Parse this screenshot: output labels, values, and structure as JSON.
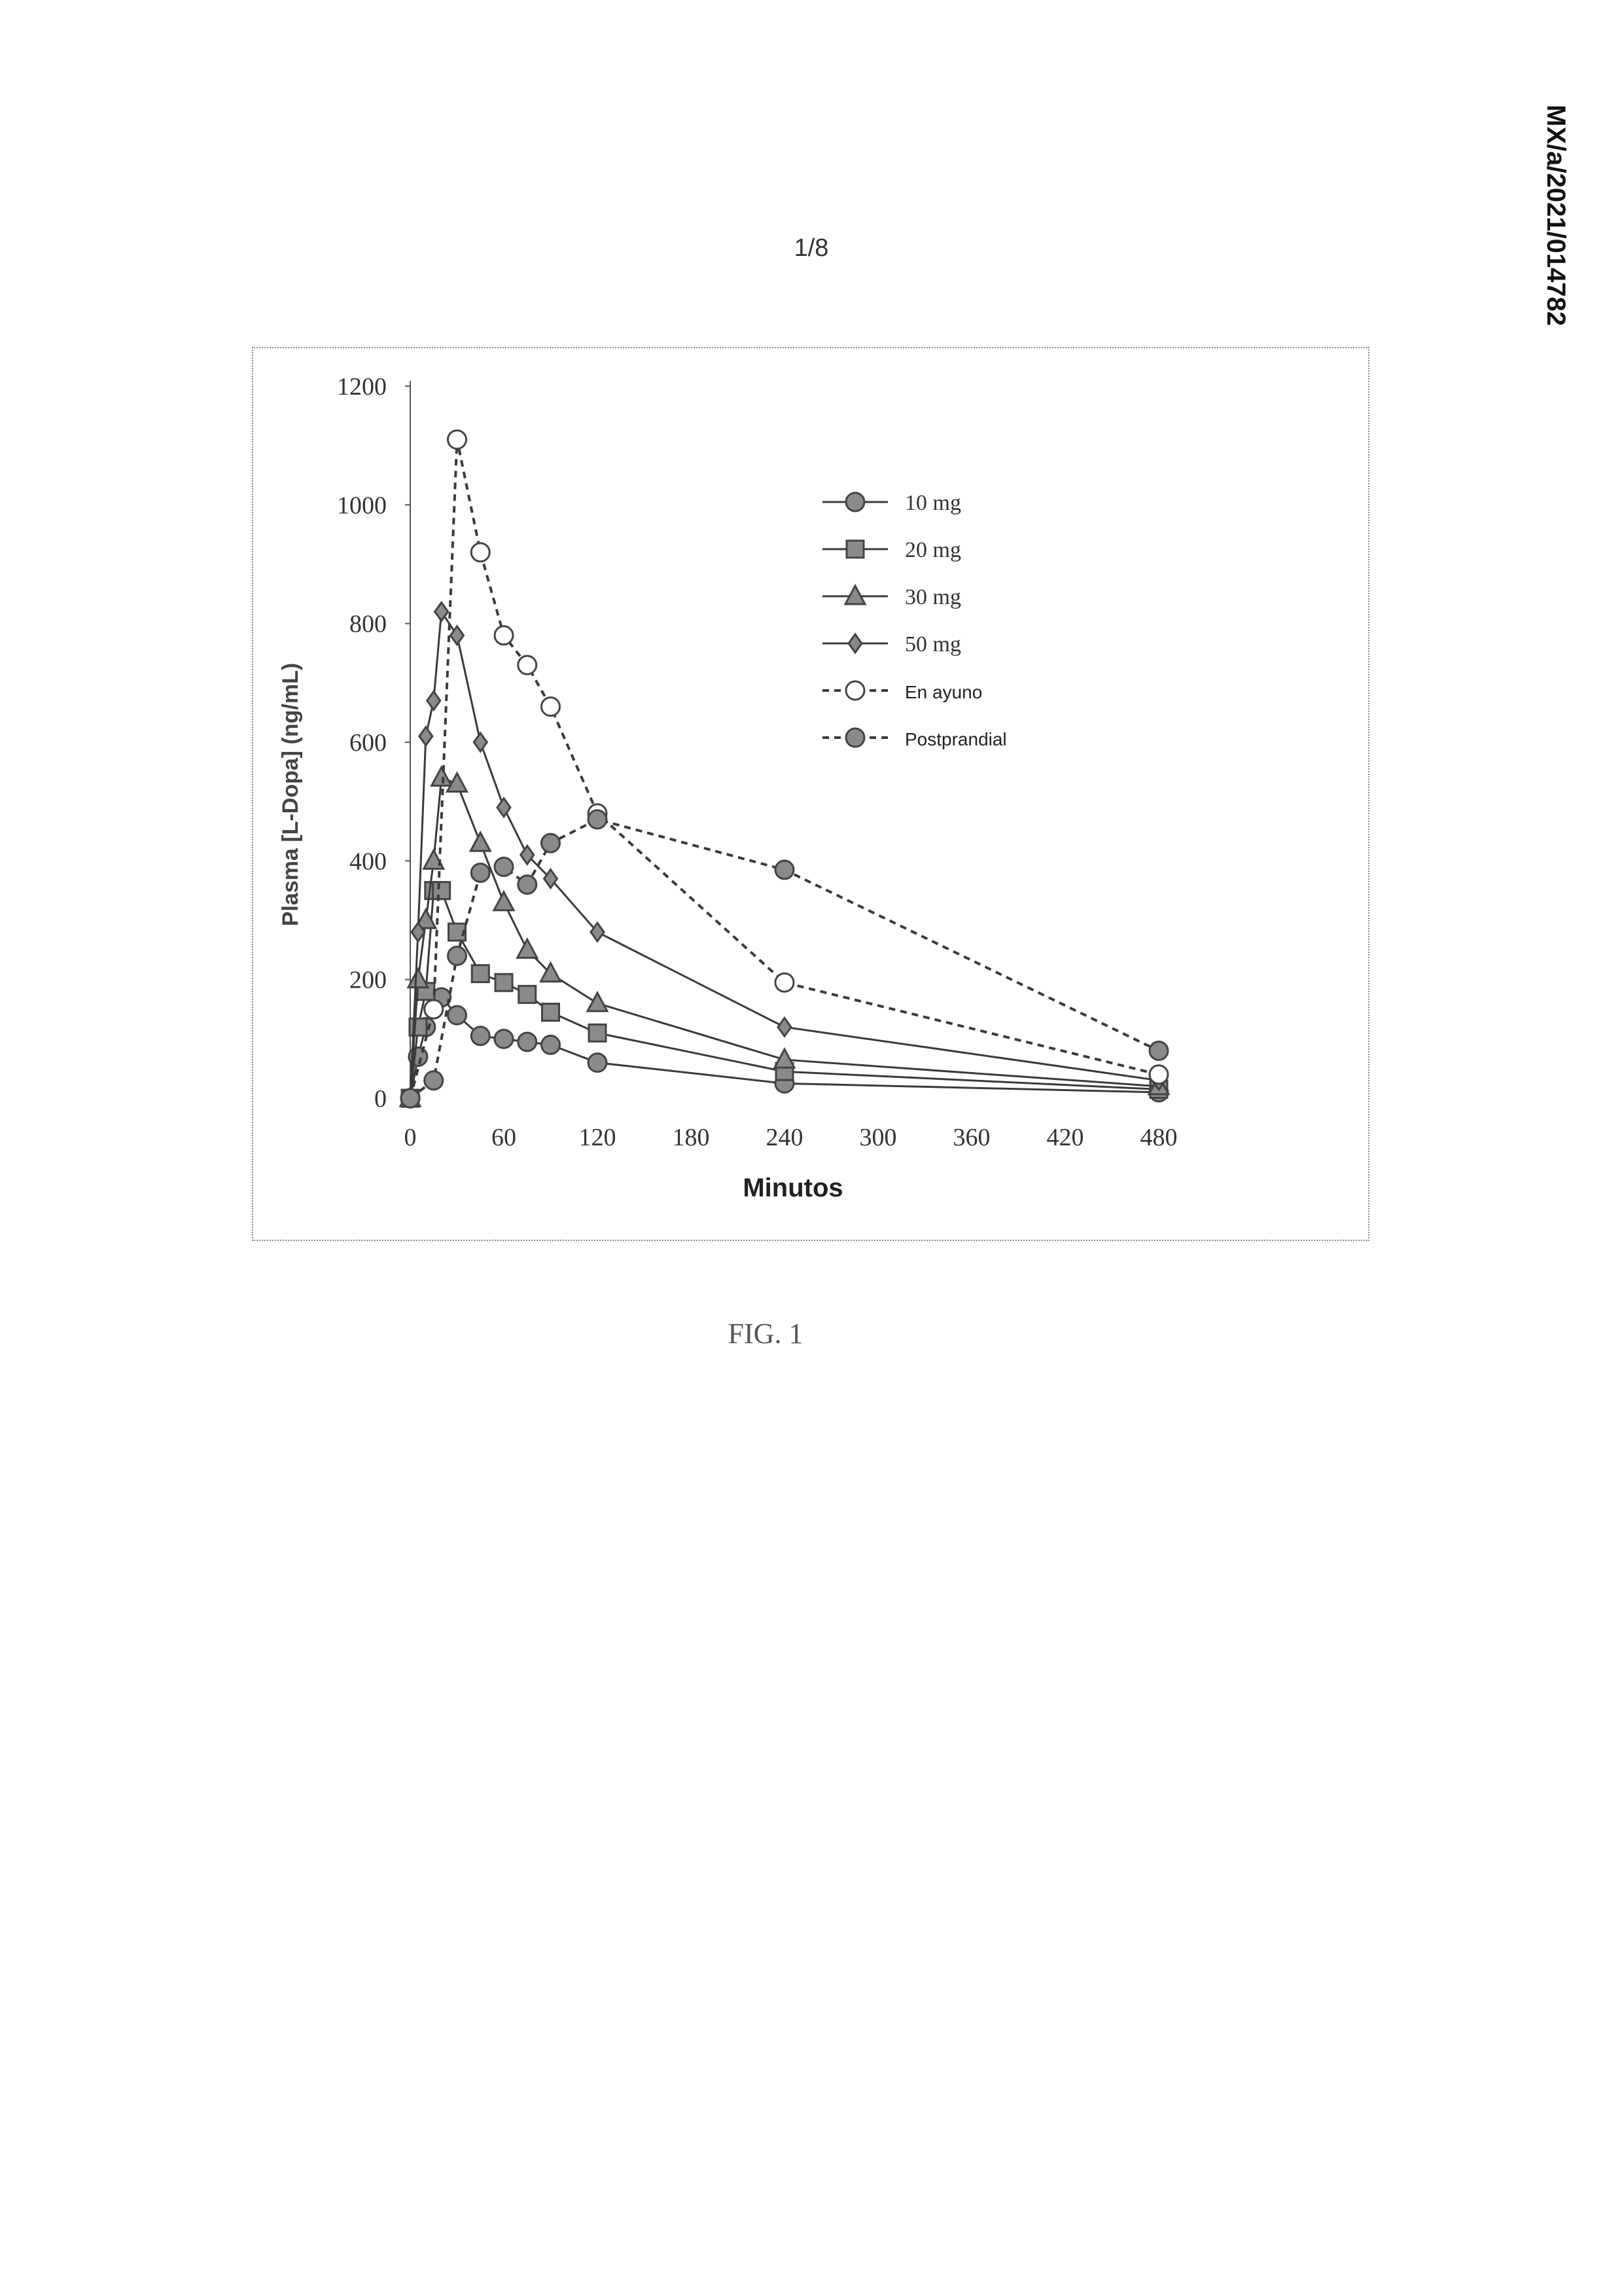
{
  "page": {
    "page_number": "1/8",
    "document_id": "MX/a/2021/014782",
    "figure_caption": "FIG. 1"
  },
  "chart_data": {
    "type": "line",
    "xlabel": "Minutos",
    "ylabel": "Plasma [L-Dopa] (ng/mL)",
    "xlim": [
      0,
      480
    ],
    "ylim": [
      0,
      1200
    ],
    "xticks": [
      0,
      60,
      120,
      180,
      240,
      300,
      360,
      420,
      480
    ],
    "yticks": [
      0,
      200,
      400,
      600,
      800,
      1000,
      1200
    ],
    "grid": false,
    "legend_position": "top-right",
    "series": [
      {
        "name": "10 mg",
        "marker": "circle",
        "line_style": "solid",
        "fill": "#8a8a8a",
        "x": [
          0,
          5,
          10,
          15,
          20,
          30,
          45,
          60,
          75,
          90,
          120,
          240,
          480
        ],
        "y": [
          0,
          70,
          120,
          150,
          170,
          140,
          105,
          100,
          95,
          90,
          60,
          25,
          10
        ]
      },
      {
        "name": "20 mg",
        "marker": "square",
        "line_style": "solid",
        "fill": "#8a8a8a",
        "x": [
          0,
          5,
          10,
          15,
          20,
          30,
          45,
          60,
          75,
          90,
          120,
          240,
          480
        ],
        "y": [
          0,
          120,
          180,
          350,
          350,
          280,
          210,
          195,
          175,
          145,
          110,
          45,
          15
        ]
      },
      {
        "name": "30 mg",
        "marker": "triangle",
        "line_style": "solid",
        "fill": "#8a8a8a",
        "x": [
          0,
          5,
          10,
          15,
          20,
          30,
          45,
          60,
          75,
          90,
          120,
          240,
          480
        ],
        "y": [
          0,
          200,
          300,
          400,
          540,
          530,
          430,
          330,
          250,
          210,
          160,
          65,
          20
        ]
      },
      {
        "name": "50 mg",
        "marker": "diamond",
        "line_style": "solid",
        "fill": "#8a8a8a",
        "x": [
          0,
          5,
          10,
          15,
          20,
          30,
          45,
          60,
          75,
          90,
          120,
          240,
          480
        ],
        "y": [
          0,
          280,
          610,
          670,
          820,
          780,
          600,
          490,
          410,
          370,
          280,
          120,
          30
        ]
      },
      {
        "name": "En ayuno",
        "marker": "circle-open",
        "line_style": "dashed",
        "fill": "#ffffff",
        "x": [
          0,
          15,
          30,
          45,
          60,
          75,
          90,
          120,
          240,
          480
        ],
        "y": [
          0,
          150,
          1110,
          920,
          780,
          730,
          660,
          480,
          195,
          40
        ]
      },
      {
        "name": "Postprandial",
        "marker": "circle",
        "line_style": "dashed",
        "fill": "#8a8a8a",
        "x": [
          0,
          15,
          30,
          45,
          60,
          75,
          90,
          120,
          240,
          480
        ],
        "y": [
          0,
          30,
          240,
          380,
          390,
          360,
          430,
          470,
          385,
          80
        ]
      }
    ]
  }
}
